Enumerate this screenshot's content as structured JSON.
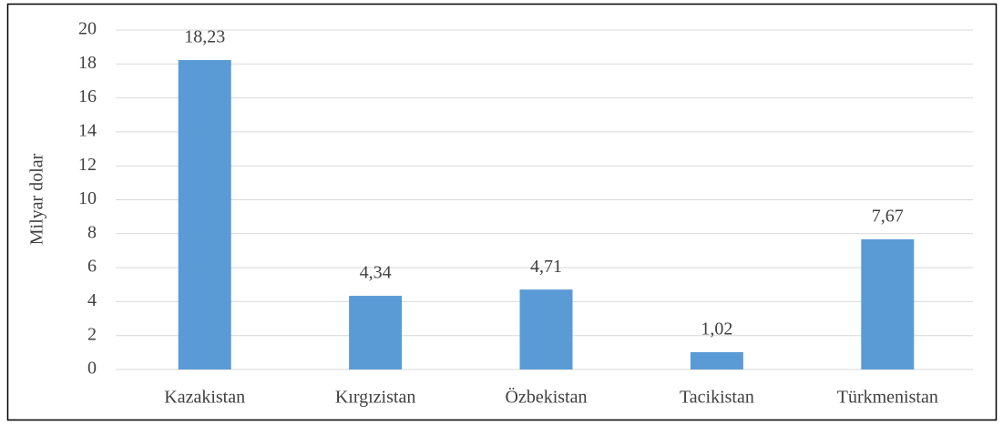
{
  "chart_data": {
    "type": "bar",
    "y_label": "Milyar dolar",
    "categories": [
      "Kazakistan",
      "Kırgızistan",
      "Özbekistan",
      "Tacikistan",
      "Türkmenistan"
    ],
    "values": [
      18.23,
      4.34,
      4.71,
      1.02,
      7.67
    ],
    "value_labels": [
      "18,23",
      "4,34",
      "4,71",
      "1,02",
      "7,67"
    ],
    "color": "#5b9bd5",
    "ylim": [
      0,
      20
    ],
    "yticks": [
      0,
      2,
      4,
      6,
      8,
      10,
      12,
      14,
      16,
      18,
      20
    ],
    "grid": true
  }
}
